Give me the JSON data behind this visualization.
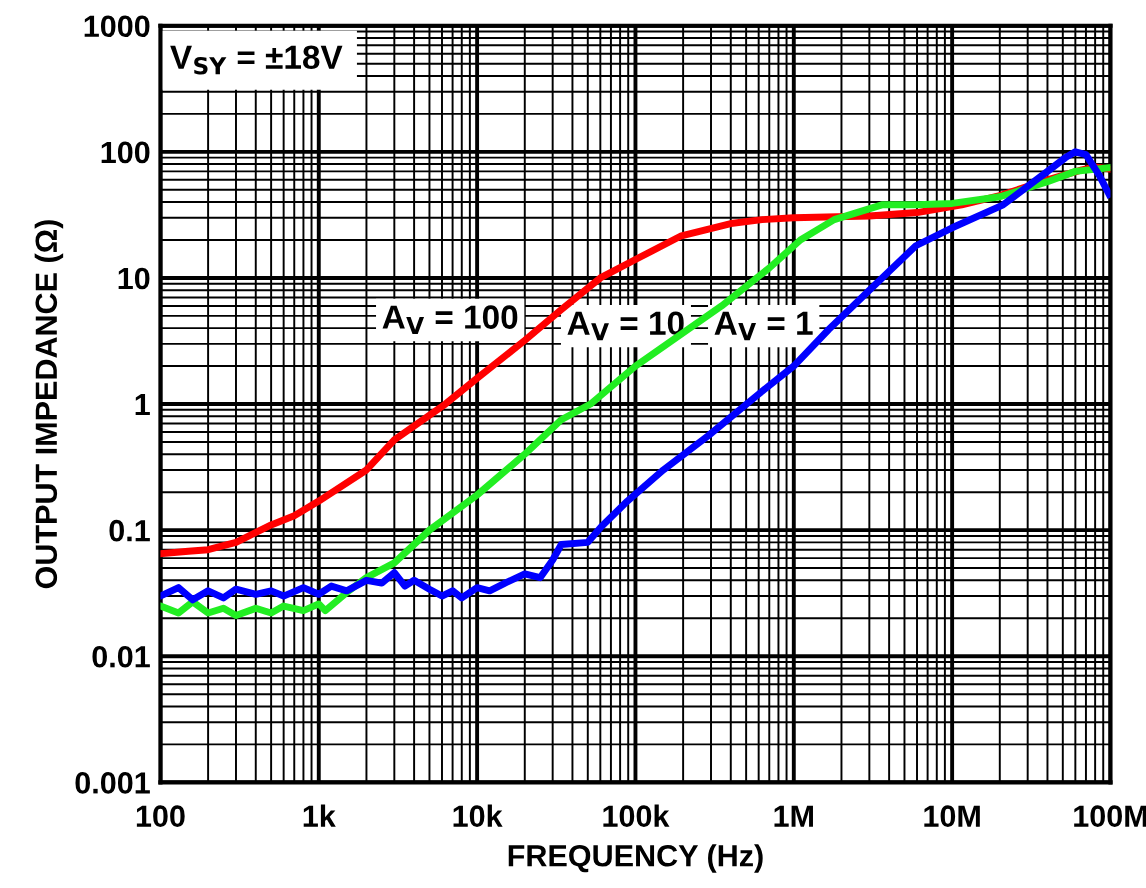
{
  "chart_data": {
    "type": "line",
    "xlabel": "FREQUENCY (Hz)",
    "ylabel": "OUTPUT IMPEDANCE (Ω)",
    "log": "xy",
    "grid": true,
    "marker": "none",
    "line_style": "solid",
    "xlim": [
      100,
      100000000
    ],
    "ylim": [
      0.001,
      1000
    ],
    "xticks": [
      100,
      {
        "value": 1000,
        "label": "1k"
      },
      {
        "value": 10000,
        "label": "10k"
      },
      {
        "value": 100000,
        "label": "100k"
      },
      {
        "value": 1000000,
        "label": "1M"
      },
      {
        "value": 10000000,
        "label": "10M"
      },
      {
        "value": 100000000,
        "label": "100M"
      }
    ],
    "yticks": [
      0.001,
      0.01,
      0.1,
      1,
      10,
      100,
      1000
    ],
    "annotations": [
      "V$_{SY}$ = ±18V",
      "A$_{V}$ = 100",
      "A$_{V}$ = 10",
      "A$_{V}$ = 1"
    ],
    "series": [
      {
        "color": "#ff0000",
        "x": [
          100,
          150,
          200,
          300,
          500,
          700,
          1000,
          2000,
          3000,
          6300,
          10000,
          20000,
          34000,
          60000,
          100000,
          195000,
          400000,
          630000,
          1000000,
          3000000,
          6000000,
          11500000,
          20000000,
          40000000,
          66000000,
          80000000,
          100000000
        ],
        "values": [
          0.065,
          0.068,
          0.07,
          0.08,
          0.11,
          0.13,
          0.17,
          0.3,
          0.52,
          1,
          1.6,
          3.2,
          5.6,
          10,
          14,
          21.6,
          27,
          29,
          30,
          31,
          33,
          38,
          45,
          60,
          72,
          76,
          73
        ]
      },
      {
        "color": "#22ee22",
        "x": [
          100,
          130,
          160,
          200,
          250,
          300,
          400,
          500,
          600,
          800,
          1000,
          1100,
          1500,
          2000,
          3000,
          5000,
          10000,
          20000,
          34000,
          52000,
          100000,
          350000,
          700000,
          1100000,
          1800000,
          3600000,
          6000000,
          10000000,
          20000000,
          40000000,
          60000000,
          100000000
        ],
        "values": [
          0.025,
          0.022,
          0.027,
          0.022,
          0.024,
          0.021,
          0.024,
          0.022,
          0.025,
          0.023,
          0.026,
          0.023,
          0.032,
          0.042,
          0.055,
          0.1,
          0.19,
          0.4,
          0.75,
          1,
          2,
          6,
          12,
          20,
          29,
          38,
          38,
          39,
          44,
          58,
          70,
          75
        ]
      },
      {
        "color": "#0000ff",
        "x": [
          100,
          130,
          160,
          200,
          250,
          300,
          400,
          500,
          600,
          800,
          1000,
          1200,
          1500,
          2000,
          2500,
          3000,
          3500,
          4000,
          5000,
          6000,
          7000,
          8000,
          10000,
          12000,
          15000,
          20000,
          25000,
          30000,
          34000,
          50000,
          61000,
          89000,
          150000,
          288000,
          600000,
          1000000,
          1660000,
          3000000,
          5900000,
          10000000,
          21000000,
          40000000,
          52000000,
          60000000,
          70000000,
          85000000,
          98000000
        ],
        "values": [
          0.03,
          0.035,
          0.028,
          0.033,
          0.029,
          0.034,
          0.031,
          0.033,
          0.03,
          0.035,
          0.031,
          0.036,
          0.033,
          0.04,
          0.038,
          0.046,
          0.036,
          0.04,
          0.034,
          0.03,
          0.033,
          0.029,
          0.035,
          0.033,
          0.038,
          0.045,
          0.042,
          0.058,
          0.077,
          0.08,
          0.107,
          0.17,
          0.3,
          0.56,
          1.2,
          2,
          3.9,
          8,
          18,
          25,
          38,
          70,
          90,
          100,
          95,
          65,
          46
        ]
      }
    ]
  }
}
